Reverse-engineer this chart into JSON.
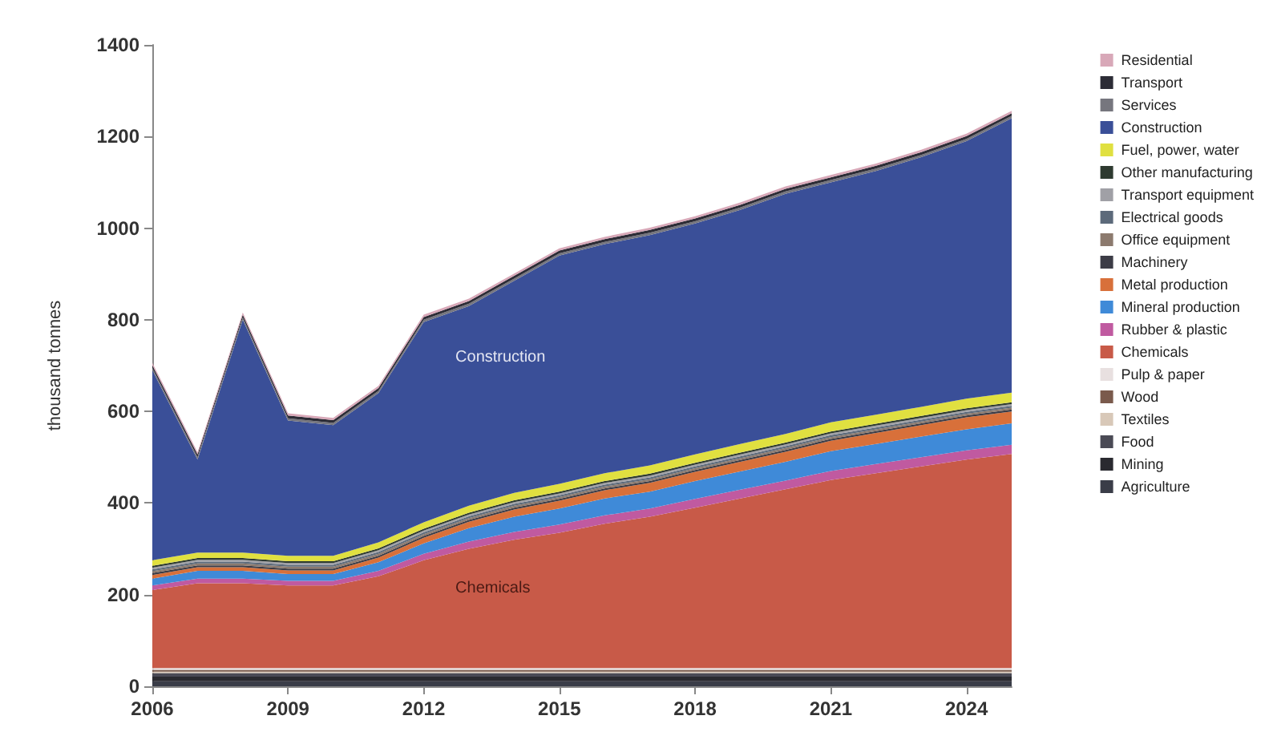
{
  "chart_data": {
    "type": "area",
    "stacked": true,
    "ylabel": "thousand tonnes",
    "x": [
      2006,
      2007,
      2008,
      2009,
      2010,
      2011,
      2012,
      2013,
      2014,
      2015,
      2016,
      2017,
      2018,
      2019,
      2020,
      2021,
      2022,
      2023,
      2024,
      2025
    ],
    "xlim": [
      2006,
      2025
    ],
    "xticks": [
      2006,
      2009,
      2012,
      2015,
      2018,
      2021,
      2024
    ],
    "ylim": [
      0,
      1400
    ],
    "yticks": [
      0,
      200,
      400,
      600,
      800,
      1000,
      1200,
      1400
    ],
    "grid": false,
    "legend": "right",
    "annotations": [
      "Construction",
      "Chemicals"
    ],
    "series": [
      {
        "name": "Agriculture",
        "color": "#3a3d48",
        "values": [
          11,
          11,
          11,
          11,
          11,
          11,
          11,
          11,
          11,
          11,
          11,
          11,
          11,
          11,
          11,
          11,
          11,
          11,
          11,
          11
        ]
      },
      {
        "name": "Mining",
        "color": "#2a2a30",
        "values": [
          10,
          10,
          10,
          10,
          10,
          10,
          10,
          10,
          10,
          10,
          10,
          10,
          10,
          10,
          10,
          10,
          10,
          10,
          10,
          10
        ]
      },
      {
        "name": "Food",
        "color": "#4a4a55",
        "values": [
          8,
          8,
          8,
          8,
          8,
          8,
          8,
          8,
          8,
          8,
          8,
          8,
          8,
          8,
          8,
          8,
          8,
          8,
          8,
          8
        ]
      },
      {
        "name": "Textiles",
        "color": "#d8c8b8",
        "values": [
          3,
          3,
          3,
          3,
          3,
          3,
          3,
          3,
          3,
          3,
          3,
          3,
          3,
          3,
          3,
          3,
          3,
          3,
          3,
          3
        ]
      },
      {
        "name": "Wood",
        "color": "#7a5a4c",
        "values": [
          4,
          4,
          4,
          4,
          4,
          4,
          4,
          4,
          4,
          4,
          4,
          4,
          4,
          4,
          4,
          4,
          4,
          4,
          4,
          4
        ]
      },
      {
        "name": "Pulp & paper",
        "color": "#e8e0e0",
        "values": [
          4,
          4,
          4,
          4,
          4,
          4,
          4,
          4,
          4,
          4,
          4,
          4,
          4,
          4,
          4,
          4,
          4,
          4,
          4,
          4
        ]
      },
      {
        "name": "Chemicals",
        "color": "#c85a48",
        "values": [
          170,
          185,
          185,
          180,
          180,
          200,
          235,
          260,
          280,
          295,
          315,
          330,
          350,
          370,
          390,
          410,
          425,
          440,
          455,
          467
        ]
      },
      {
        "name": "Rubber & plastic",
        "color": "#c05aa0",
        "values": [
          10,
          10,
          10,
          10,
          10,
          12,
          14,
          16,
          17,
          18,
          18,
          18,
          19,
          19,
          19,
          20,
          20,
          20,
          20,
          20
        ]
      },
      {
        "name": "Mineral production",
        "color": "#3f8ad8",
        "values": [
          15,
          17,
          17,
          15,
          15,
          19,
          23,
          29,
          33,
          35,
          37,
          37,
          39,
          40,
          41,
          43,
          44,
          45,
          46,
          47
        ]
      },
      {
        "name": "Metal production",
        "color": "#d8703a",
        "values": [
          8,
          8,
          8,
          8,
          8,
          10,
          12,
          14,
          16,
          17,
          18,
          19,
          20,
          21,
          22,
          23,
          24,
          25,
          26,
          26
        ]
      },
      {
        "name": "Machinery",
        "color": "#3c3c46",
        "values": [
          4,
          4,
          4,
          4,
          4,
          4,
          4,
          4,
          4,
          4,
          4,
          4,
          4,
          4,
          4,
          4,
          4,
          4,
          4,
          4
        ]
      },
      {
        "name": "Office equipment",
        "color": "#8c7a6e",
        "values": [
          4,
          4,
          4,
          4,
          4,
          4,
          4,
          4,
          4,
          4,
          4,
          4,
          4,
          4,
          4,
          4,
          4,
          4,
          4,
          4
        ]
      },
      {
        "name": "Electrical goods",
        "color": "#5c6a7a",
        "values": [
          4,
          4,
          4,
          4,
          4,
          4,
          4,
          4,
          4,
          4,
          4,
          4,
          4,
          4,
          4,
          4,
          4,
          4,
          4,
          4
        ]
      },
      {
        "name": "Transport equipment",
        "color": "#a0a0a6",
        "values": [
          4,
          4,
          4,
          4,
          4,
          4,
          4,
          4,
          4,
          4,
          4,
          4,
          4,
          4,
          4,
          4,
          4,
          4,
          4,
          4
        ]
      },
      {
        "name": "Other manufacturing",
        "color": "#2e3a30",
        "values": [
          4,
          4,
          4,
          4,
          4,
          4,
          4,
          4,
          4,
          4,
          4,
          4,
          4,
          4,
          4,
          4,
          4,
          4,
          4,
          4
        ]
      },
      {
        "name": "Fuel, power, water",
        "color": "#e0e040",
        "values": [
          12,
          12,
          12,
          12,
          12,
          13,
          14,
          15,
          16,
          17,
          17,
          18,
          18,
          19,
          19,
          20,
          20,
          20,
          21,
          21
        ]
      },
      {
        "name": "Construction",
        "color": "#3a4f98",
        "values": [
          415,
          203,
          508,
          295,
          285,
          326,
          437,
          436,
          463,
          498,
          500,
          503,
          504,
          511,
          524,
          524,
          532,
          545,
          562,
          599
        ]
      },
      {
        "name": "Services",
        "color": "#76767e",
        "values": [
          5,
          5,
          5,
          5,
          5,
          5,
          5,
          5,
          5,
          5,
          5,
          5,
          5,
          5,
          5,
          5,
          5,
          5,
          5,
          5
        ]
      },
      {
        "name": "Transport",
        "color": "#2c2c36",
        "values": [
          6,
          6,
          6,
          6,
          6,
          6,
          6,
          6,
          6,
          6,
          6,
          6,
          6,
          6,
          6,
          6,
          6,
          6,
          6,
          6
        ]
      },
      {
        "name": "Residential",
        "color": "#d8a8b8",
        "values": [
          5,
          5,
          5,
          5,
          5,
          5,
          5,
          5,
          5,
          5,
          5,
          5,
          5,
          5,
          5,
          5,
          5,
          5,
          5,
          5
        ]
      }
    ]
  }
}
